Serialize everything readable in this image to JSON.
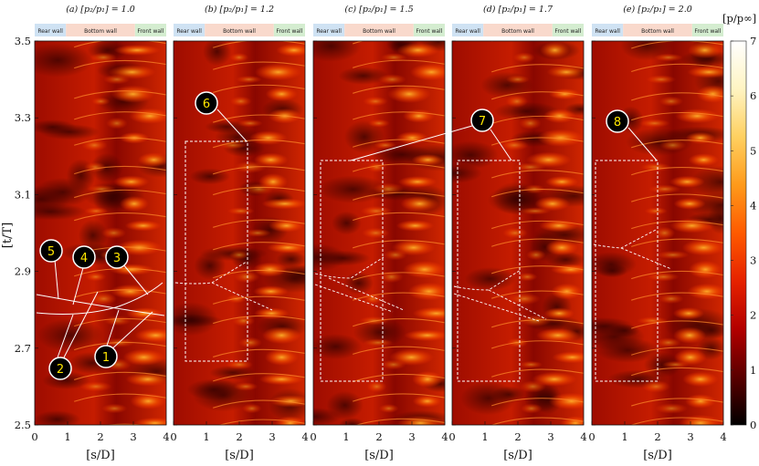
{
  "figure": {
    "panels": [
      {
        "title": "(a) [p₂/p₁] = 1.0",
        "ratio": 1.0
      },
      {
        "title": "(b) [p₂/p₁] = 1.2",
        "ratio": 1.2
      },
      {
        "title": "(c) [p₂/p₁] = 1.5",
        "ratio": 1.5
      },
      {
        "title": "(d) [p₂/p₁] = 1.7",
        "ratio": 1.7
      },
      {
        "title": "(e) [p₂/p₁] = 2.0",
        "ratio": 2.0
      }
    ],
    "wall_labels": {
      "rear": "Rear wall",
      "bottom": "Bottom wall",
      "front": "Front wall"
    },
    "wall_colors": {
      "rear": "#cfe2f3",
      "bottom": "#f9d9cc",
      "front": "#d4edd0"
    },
    "x_label": "[s/D]",
    "y_label": "[t/T]",
    "x_ticks": [
      "0",
      "1",
      "2",
      "3",
      "4"
    ],
    "y_ticks": [
      "2.5",
      "2.7",
      "2.9",
      "3.1",
      "3.3",
      "3.5"
    ],
    "colorbar": {
      "label": "[p/p∞]",
      "ticks": [
        "0",
        "1",
        "2",
        "3",
        "4",
        "5",
        "6",
        "7"
      ],
      "colors": [
        "#000000",
        "#5a0000",
        "#b30000",
        "#e62200",
        "#ff5a00",
        "#ff9a1a",
        "#ffd060",
        "#fff4c2",
        "#ffffff"
      ]
    },
    "callouts": [
      "1",
      "2",
      "3",
      "4",
      "5",
      "6",
      "7",
      "8"
    ]
  },
  "chart_data": {
    "type": "heatmap",
    "xlabel": "[s/D]",
    "ylabel": "[t/T]",
    "xlim": [
      0,
      4
    ],
    "ylim": [
      2.5,
      3.5
    ],
    "colorbar_label": "[p/p∞]",
    "colorbar_range": [
      0,
      7
    ],
    "panels": [
      "(a) [p₂/p₁] = 1.0",
      "(b) [p₂/p₁] = 1.2",
      "(c) [p₂/p₁] = 1.5",
      "(d) [p₂/p₁] = 1.7",
      "(e) [p₂/p₁] = 2.0"
    ]
  }
}
